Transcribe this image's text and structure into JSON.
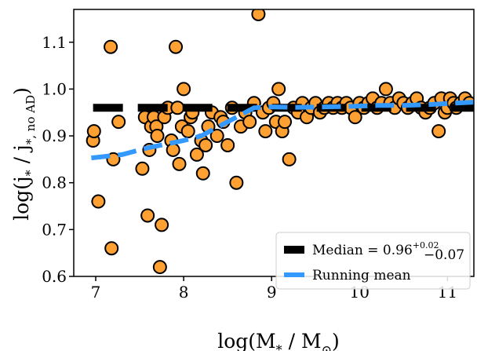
{
  "chart_data": {
    "type": "scatter",
    "title": "",
    "xlabel": "log(M",
    "xlabel_sub": "*",
    "xlabel_mid": " / M",
    "xlabel_sub2": "⊙",
    "xlabel_end": ")",
    "ylabel": "log(j",
    "ylabel_sub": "*",
    "ylabel_mid": " / j",
    "ylabel_sub2": "*, no AD",
    "ylabel_end": ")",
    "xlim": [
      6.75,
      11.3
    ],
    "ylim": [
      0.6,
      1.17
    ],
    "x_ticks": [
      7,
      8,
      9,
      10,
      11
    ],
    "y_ticks": [
      0.6,
      0.7,
      0.8,
      0.9,
      1.0,
      1.1
    ],
    "x_tick_labels": [
      "7",
      "8",
      "9",
      "10",
      "11"
    ],
    "y_tick_labels": [
      "0.6",
      "0.7",
      "0.8",
      "0.9",
      "1.0",
      "1.1"
    ],
    "grid": false,
    "legend_position": "bottom-right",
    "colors": {
      "marker_fill": "#ffa033",
      "marker_edge": "#000000",
      "median": "#000000",
      "running_mean": "#3399ff"
    },
    "series": [
      {
        "name": "scatter",
        "kind": "scatter",
        "points": [
          [
            6.97,
            0.89
          ],
          [
            6.98,
            0.91
          ],
          [
            7.03,
            0.76
          ],
          [
            7.17,
            1.09
          ],
          [
            7.18,
            0.66
          ],
          [
            7.2,
            0.85
          ],
          [
            7.26,
            0.93
          ],
          [
            7.53,
            0.83
          ],
          [
            7.56,
            0.94
          ],
          [
            7.59,
            0.73
          ],
          [
            7.61,
            0.87
          ],
          [
            7.63,
            0.92
          ],
          [
            7.66,
            0.94
          ],
          [
            7.69,
            0.92
          ],
          [
            7.7,
            0.9
          ],
          [
            7.73,
            0.62
          ],
          [
            7.75,
            0.71
          ],
          [
            7.78,
            0.94
          ],
          [
            7.82,
            0.96
          ],
          [
            7.86,
            0.89
          ],
          [
            7.88,
            0.87
          ],
          [
            7.91,
            1.09
          ],
          [
            7.93,
            0.96
          ],
          [
            7.95,
            0.84
          ],
          [
            7.98,
            0.92
          ],
          [
            8.0,
            1.0
          ],
          [
            8.05,
            0.91
          ],
          [
            8.08,
            0.94
          ],
          [
            8.1,
            0.95
          ],
          [
            8.15,
            0.86
          ],
          [
            8.2,
            0.89
          ],
          [
            8.22,
            0.82
          ],
          [
            8.25,
            0.88
          ],
          [
            8.28,
            0.92
          ],
          [
            8.32,
            0.95
          ],
          [
            8.38,
            0.9
          ],
          [
            8.42,
            0.94
          ],
          [
            8.45,
            0.93
          ],
          [
            8.5,
            0.88
          ],
          [
            8.55,
            0.96
          ],
          [
            8.6,
            0.8
          ],
          [
            8.65,
            0.92
          ],
          [
            8.7,
            0.95
          ],
          [
            8.75,
            0.93
          ],
          [
            8.8,
            0.97
          ],
          [
            8.85,
            1.16
          ],
          [
            8.9,
            0.95
          ],
          [
            8.93,
            0.91
          ],
          [
            8.97,
            0.96
          ],
          [
            9.02,
            0.97
          ],
          [
            9.05,
            0.93
          ],
          [
            9.08,
            1.0
          ],
          [
            9.12,
            0.91
          ],
          [
            9.15,
            0.93
          ],
          [
            9.2,
            0.85
          ],
          [
            9.25,
            0.96
          ],
          [
            9.3,
            0.95
          ],
          [
            9.35,
            0.97
          ],
          [
            9.4,
            0.94
          ],
          [
            9.45,
            0.96
          ],
          [
            9.5,
            0.97
          ],
          [
            9.55,
            0.95
          ],
          [
            9.6,
            0.96
          ],
          [
            9.65,
            0.97
          ],
          [
            9.7,
            0.96
          ],
          [
            9.75,
            0.97
          ],
          [
            9.8,
            0.96
          ],
          [
            9.85,
            0.97
          ],
          [
            9.9,
            0.96
          ],
          [
            9.95,
            0.94
          ],
          [
            10.0,
            0.97
          ],
          [
            10.05,
            0.96
          ],
          [
            10.1,
            0.97
          ],
          [
            10.15,
            0.98
          ],
          [
            10.2,
            0.96
          ],
          [
            10.25,
            0.97
          ],
          [
            10.3,
            1.0
          ],
          [
            10.35,
            0.97
          ],
          [
            10.4,
            0.96
          ],
          [
            10.45,
            0.98
          ],
          [
            10.5,
            0.97
          ],
          [
            10.55,
            0.96
          ],
          [
            10.6,
            0.97
          ],
          [
            10.65,
            0.98
          ],
          [
            10.7,
            0.96
          ],
          [
            10.75,
            0.95
          ],
          [
            10.8,
            0.96
          ],
          [
            10.85,
            0.97
          ],
          [
            10.9,
            0.91
          ],
          [
            10.93,
            0.98
          ],
          [
            10.97,
            0.95
          ],
          [
            11.0,
            0.96
          ],
          [
            11.03,
            0.98
          ],
          [
            11.07,
            0.97
          ],
          [
            11.1,
            0.96
          ],
          [
            11.15,
            0.97
          ],
          [
            11.2,
            0.98
          ],
          [
            11.25,
            0.97
          ]
        ]
      },
      {
        "name": "Median",
        "kind": "median",
        "value": 0.96,
        "err_plus": 0.02,
        "err_minus": 0.07
      },
      {
        "name": "Running mean",
        "kind": "line",
        "points": [
          [
            6.95,
            0.853
          ],
          [
            7.3,
            0.86
          ],
          [
            7.6,
            0.875
          ],
          [
            8.0,
            0.89
          ],
          [
            8.2,
            0.9
          ],
          [
            8.4,
            0.92
          ],
          [
            8.6,
            0.94
          ],
          [
            8.8,
            0.96
          ],
          [
            9.0,
            0.962
          ],
          [
            9.3,
            0.961
          ],
          [
            9.6,
            0.962
          ],
          [
            9.9,
            0.963
          ],
          [
            10.2,
            0.965
          ],
          [
            10.5,
            0.965
          ],
          [
            10.8,
            0.967
          ],
          [
            11.1,
            0.97
          ],
          [
            11.3,
            0.972
          ]
        ]
      }
    ],
    "legend": {
      "median_label": "Median = 0.96",
      "median_sup": "+0.02",
      "median_sub": "−0.07",
      "mean_label": "Running mean"
    }
  }
}
